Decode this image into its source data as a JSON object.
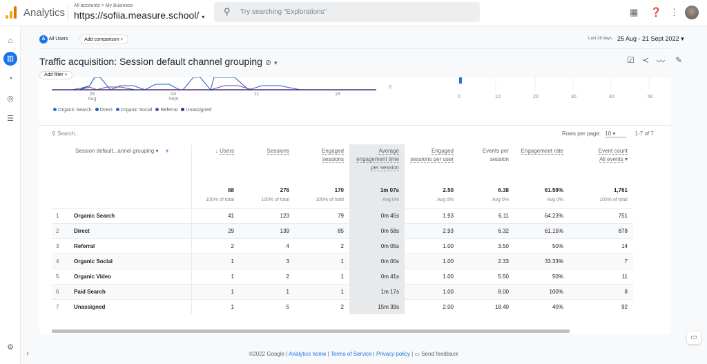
{
  "header": {
    "app_name": "Analytics",
    "breadcrumb": "All accounts > My Business",
    "property": "https://sofiia.measure.school/",
    "search_placeholder": "Try searching \"Explorations\""
  },
  "comparison": {
    "segment_badge": "A",
    "segment": "All Users",
    "add_comparison": "Add comparison"
  },
  "date_range": {
    "label": "Last 28 days",
    "value": "25 Aug - 21 Sept 2022"
  },
  "report": {
    "title": "Traffic acquisition: Session default channel grouping",
    "add_filter": "Add filter"
  },
  "chart": {
    "x_ticks": [
      {
        "day": "28",
        "month": "Aug"
      },
      {
        "day": "04",
        "month": "Sept"
      },
      {
        "day": "11",
        "month": ""
      },
      {
        "day": "18",
        "month": ""
      }
    ],
    "y_zero": "0",
    "bar_ticks": [
      "0",
      "10",
      "20",
      "30",
      "40",
      "50"
    ],
    "legend": [
      {
        "name": "Organic Search",
        "color": "#1a73e8"
      },
      {
        "name": "Direct",
        "color": "#1e5bc6"
      },
      {
        "name": "Organic Social",
        "color": "#3366cc"
      },
      {
        "name": "Referral",
        "color": "#5f4b8b"
      },
      {
        "name": "Unassigned",
        "color": "#4a2c7a"
      }
    ]
  },
  "table": {
    "search_placeholder": "Search...",
    "rows_per_page_label": "Rows per page:",
    "rows_per_page": "10",
    "pagination": "1-7 of 7",
    "dimension_header": "Session default...annel grouping",
    "columns": [
      "Users",
      "Sessions",
      "Engaged sessions",
      "Average engagement time per session",
      "Engaged sessions per user",
      "Events per session",
      "Engagement rate",
      "Event count"
    ],
    "event_filter": "All events",
    "totals": [
      {
        "v": "68",
        "s": "100% of total"
      },
      {
        "v": "276",
        "s": "100% of total"
      },
      {
        "v": "170",
        "s": "100% of total"
      },
      {
        "v": "1m 07s",
        "s": "Avg 0%"
      },
      {
        "v": "2.50",
        "s": "Avg 0%"
      },
      {
        "v": "6.38",
        "s": "Avg 0%"
      },
      {
        "v": "61.59%",
        "s": "Avg 0%"
      },
      {
        "v": "1,761",
        "s": "100% of total"
      }
    ],
    "rows": [
      {
        "i": "1",
        "name": "Organic Search",
        "c": [
          "41",
          "123",
          "79",
          "0m 45s",
          "1.93",
          "6.11",
          "64.23%",
          "751"
        ]
      },
      {
        "i": "2",
        "name": "Direct",
        "c": [
          "29",
          "139",
          "85",
          "0m 58s",
          "2.93",
          "6.32",
          "61.15%",
          "878"
        ]
      },
      {
        "i": "3",
        "name": "Referral",
        "c": [
          "2",
          "4",
          "2",
          "0m 05s",
          "1.00",
          "3.50",
          "50%",
          "14"
        ]
      },
      {
        "i": "4",
        "name": "Organic Social",
        "c": [
          "1",
          "3",
          "1",
          "0m 00s",
          "1.00",
          "2.33",
          "33.33%",
          "7"
        ]
      },
      {
        "i": "5",
        "name": "Organic Video",
        "c": [
          "1",
          "2",
          "1",
          "0m 41s",
          "1.00",
          "5.50",
          "50%",
          "11"
        ]
      },
      {
        "i": "6",
        "name": "Paid Search",
        "c": [
          "1",
          "1",
          "1",
          "1m 17s",
          "1.00",
          "8.00",
          "100%",
          "8"
        ]
      },
      {
        "i": "7",
        "name": "Unassigned",
        "c": [
          "1",
          "5",
          "2",
          "15m 39s",
          "2.00",
          "18.40",
          "40%",
          "92"
        ]
      }
    ]
  },
  "footer": {
    "copyright": "©2022 Google |",
    "analytics_home": "Analytics home",
    "terms": "Terms of Service",
    "privacy": "Privacy policy",
    "feedback": "Send feedback"
  }
}
